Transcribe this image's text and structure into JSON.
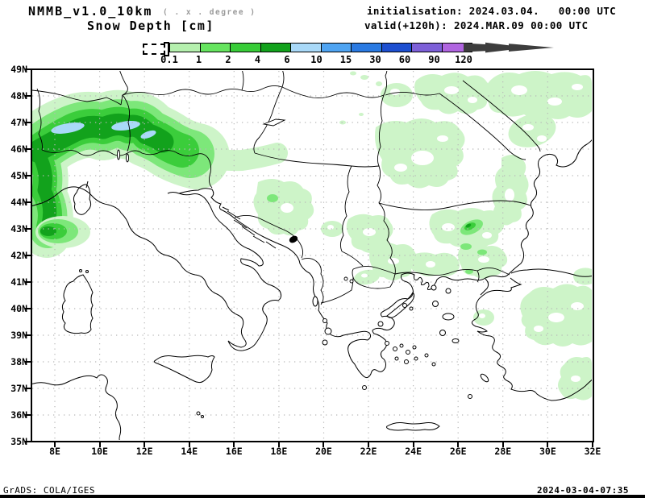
{
  "header": {
    "title": "NMMB_v1.0_10km",
    "title_note": "( . x . degree )",
    "subtitle": "Snow Depth [cm]",
    "init_line": "initialisation: 2024.03.04.   00:00 UTC",
    "valid_line": "valid(+120h): 2024.MAR.09 00:00 UTC"
  },
  "colorbar": {
    "tick_labels": [
      "0.1",
      "1",
      "2",
      "4",
      "6",
      "10",
      "15",
      "30",
      "60",
      "90",
      "120"
    ],
    "segment_colors": [
      "#b5f0ae",
      "#66e45f",
      "#38cc38",
      "#12a21c",
      "#a9d9f8",
      "#4fa4f2",
      "#2a7ae2",
      "#1d4fd0",
      "#7d60d8",
      "#b065e0"
    ],
    "overflow_arrow_color": "#3d3d3d",
    "underflow_style": "empty-dashed-box"
  },
  "map": {
    "lat_labels": [
      "49N",
      "48N",
      "47N",
      "46N",
      "45N",
      "44N",
      "43N",
      "42N",
      "41N",
      "40N",
      "39N",
      "38N",
      "37N",
      "36N",
      "35N"
    ],
    "lon_labels": [
      "8E",
      "10E",
      "12E",
      "14E",
      "16E",
      "18E",
      "20E",
      "22E",
      "24E",
      "26E",
      "28E",
      "30E",
      "32E"
    ],
    "shade_levels_cm": [
      "0.1-1",
      "1-2",
      "2-4",
      "4-6",
      "6-10"
    ],
    "shade_colors": [
      "#cdf4c8",
      "#7de77a",
      "#3bcd3b",
      "#12a21c",
      "#a9d9f8"
    ]
  },
  "footer": {
    "left": "GrADS: COLA/IGES",
    "right": "2024-03-04-07:35"
  }
}
